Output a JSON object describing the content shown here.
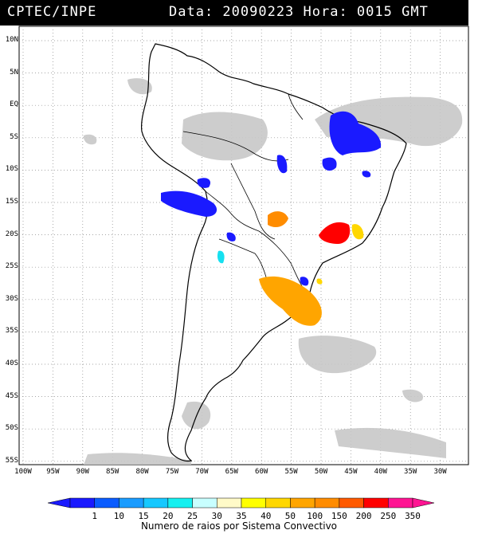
{
  "header": {
    "source": "CPTEC/INPE",
    "datetime": "Data: 20090223 Hora: 0015 GMT"
  },
  "axes": {
    "lat_labels": [
      "10N",
      "5N",
      "EQ",
      "5S",
      "10S",
      "15S",
      "20S",
      "25S",
      "30S",
      "35S",
      "40S",
      "45S",
      "50S",
      "55S"
    ],
    "lon_labels": [
      "100W",
      "95W",
      "90W",
      "85W",
      "80W",
      "75W",
      "70W",
      "65W",
      "60W",
      "55W",
      "50W",
      "45W",
      "40W",
      "35W",
      "30W"
    ]
  },
  "colorbar": {
    "labels": [
      "1",
      "10",
      "15",
      "20",
      "25",
      "30",
      "35",
      "40",
      "50",
      "100",
      "150",
      "200",
      "250",
      "350"
    ],
    "colors": [
      "#1a1aff",
      "#0a5cff",
      "#1a9cff",
      "#16c8ff",
      "#16f0f0",
      "#c8ffff",
      "#fffac8",
      "#ffff00",
      "#ffd700",
      "#ffa500",
      "#ff8c00",
      "#ff5a00",
      "#ff0000",
      "#ff1493"
    ],
    "caption": "Numero de raios por Sistema Convectivo"
  },
  "colors": {
    "cloud": "#c8c8c8",
    "coast": "#000000",
    "grid": "#888888"
  }
}
